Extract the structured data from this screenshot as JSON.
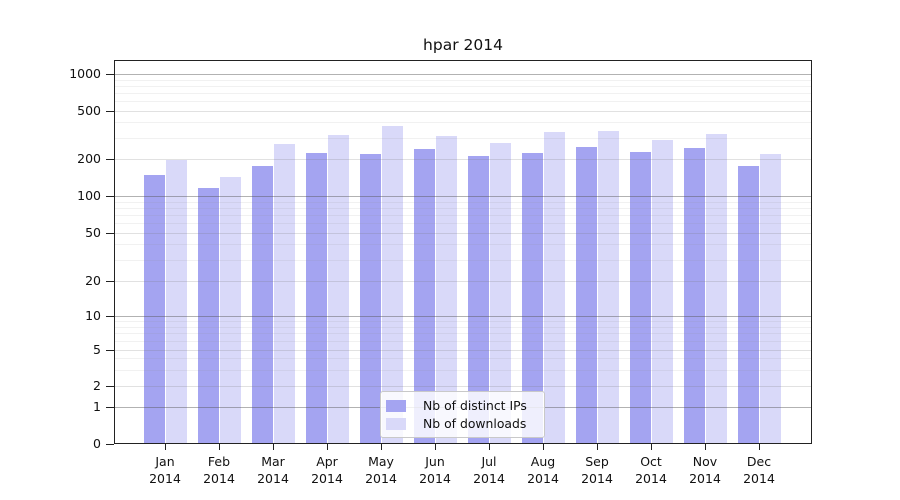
{
  "chart_data": {
    "type": "bar",
    "title": "hpar 2014",
    "categories": [
      "Jan",
      "Feb",
      "Mar",
      "Apr",
      "May",
      "Jun",
      "Jul",
      "Aug",
      "Sep",
      "Oct",
      "Nov",
      "Dec"
    ],
    "x_year_label": "2014",
    "series": [
      {
        "name": "Nb of distinct IPs",
        "color": "#a4a4f1",
        "values": [
          148,
          117,
          176,
          225,
          220,
          242,
          210,
          223,
          250,
          227,
          247,
          177
        ]
      },
      {
        "name": "Nb of downloads",
        "color": "#d9d9f9",
        "values": [
          198,
          142,
          265,
          312,
          376,
          310,
          271,
          331,
          342,
          287,
          319,
          219
        ]
      }
    ],
    "xlabel": "",
    "ylabel": "",
    "yscale": "symlog",
    "yticks": [
      0,
      1,
      2,
      5,
      10,
      20,
      50,
      100,
      200,
      500,
      1000
    ],
    "ylim": [
      0,
      1300
    ],
    "grid": true,
    "grid_minor": true,
    "legend_position": "lower center"
  }
}
